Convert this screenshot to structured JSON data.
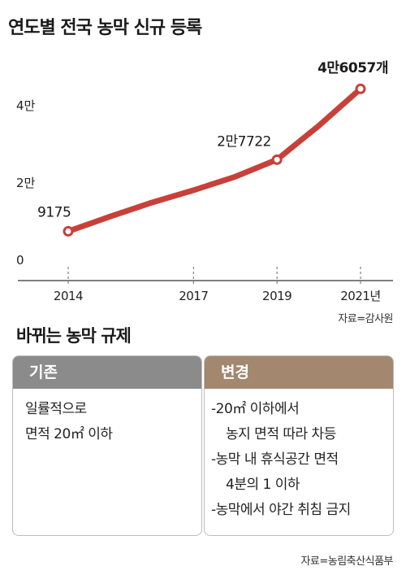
{
  "title": "연도별 전국 농막 신규 등록",
  "chart_data": {
    "type": "line",
    "title": "연도별 전국 농막 신규 등록",
    "x": [
      2014,
      2015,
      2016,
      2017,
      2018,
      2019,
      2020,
      2021
    ],
    "values": [
      9175,
      13000,
      16600,
      19800,
      23300,
      27722,
      36500,
      46057
    ],
    "x_tick_labels": [
      "2014",
      "2017",
      "2019",
      "2021년"
    ],
    "x_ticks": [
      2014,
      2017,
      2019,
      2021
    ],
    "y_tick_labels": [
      "0",
      "2만",
      "4만"
    ],
    "y_ticks": [
      0,
      20000,
      40000
    ],
    "ylim": [
      0,
      47000
    ],
    "data_labels": [
      {
        "x": 2014,
        "text": "9175"
      },
      {
        "x": 2019,
        "text": "2만7722"
      },
      {
        "x": 2021,
        "text": "4만6057개"
      }
    ],
    "marked_x": [
      2014,
      2019,
      2021
    ],
    "grid": false,
    "line_color": "#c8403a"
  },
  "source_chart": "자료=감사원",
  "regulation": {
    "title": "바뀌는 농막 규제",
    "before": {
      "header": "기존",
      "lines": [
        "일률적으로",
        "면적 20㎡ 이하"
      ]
    },
    "after": {
      "header": "변경",
      "lines": [
        {
          "text": "-20㎡ 이하에서",
          "indent": false
        },
        {
          "text": "농지 면적 따라 차등",
          "indent": true
        },
        {
          "text": "-농막 내 휴식공간 면적",
          "indent": false
        },
        {
          "text": "4분의 1 이하",
          "indent": true
        },
        {
          "text": "-농막에서 야간 취침 금지",
          "indent": false
        }
      ]
    }
  },
  "source_bottom": "자료=농림축산식품부",
  "colors": {
    "line": "#c8403a",
    "before_header": "#8b8b8b",
    "after_header": "#a3876f"
  }
}
